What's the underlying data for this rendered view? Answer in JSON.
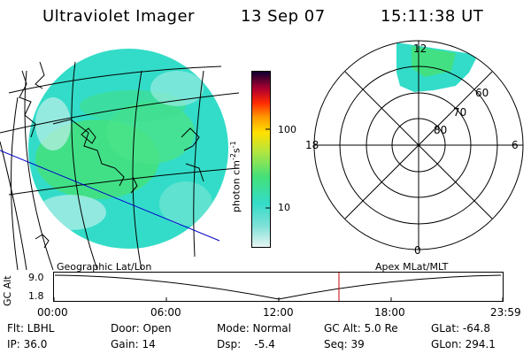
{
  "header": {
    "instrument": "Ultraviolet Imager",
    "date": "13 Sep 07",
    "time": "15:11:38 UT"
  },
  "colorbar": {
    "unit_label": "photon cm",
    "exp_neg2": "-2",
    "s_label": "s",
    "exp_neg1": "-1",
    "tick_100": "100",
    "tick_10": "10"
  },
  "polar": {
    "mlt_top": "12",
    "mlt_left": "18",
    "mlt_right": "6",
    "mlt_bottom": "0",
    "lat_60": "60",
    "lat_70": "70",
    "lat_80": "80"
  },
  "altitude_panel": {
    "left_title": "Geographic Lat/Lon",
    "right_title": "Apex  MLat/MLT",
    "axis_label": "GC Alt",
    "ytick_top": "9.0",
    "ytick_bottom": "1.8",
    "xticks": [
      "00:00",
      "06:00",
      "12:00",
      "18:00",
      "23:59"
    ]
  },
  "status": {
    "flt": "Flt: LBHL",
    "ip": "IP: 36.0",
    "door": "Door: Open",
    "gain": "Gain: 14",
    "mode": "Mode: Normal",
    "dsp": "Dsp:    -5.4",
    "gcalt": "GC Alt: 5.0 Re",
    "seq": "Seq: 39",
    "glat": "GLat: -64.8",
    "glon": "GLon: 294.1"
  },
  "colors": {
    "aurora_cyan": "#33dcc8",
    "aurora_green": "#44e07a",
    "track_line": "#0000cc",
    "time_marker": "#cc0000"
  }
}
